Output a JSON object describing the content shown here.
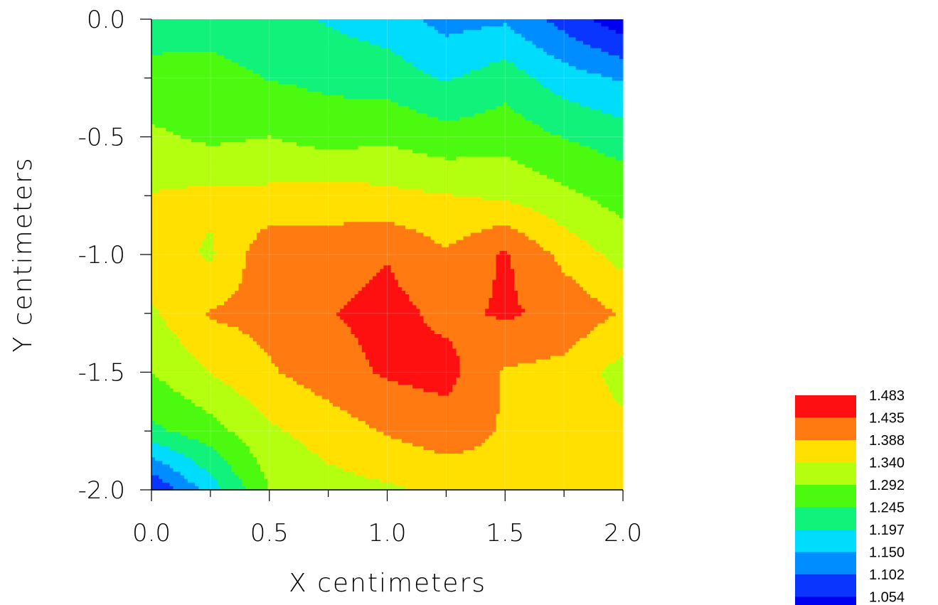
{
  "chart_data": {
    "type": "heatmap",
    "subtype": "filled-contour",
    "xlabel": "X centimeters",
    "ylabel": "Y centimeters",
    "xlim": [
      0.0,
      2.0
    ],
    "ylim": [
      -2.0,
      0.0
    ],
    "x_ticks": [
      "0.0",
      "0.5",
      "1.0",
      "1.5",
      "2.0"
    ],
    "y_ticks": [
      "0.0",
      "-0.5",
      "-1.0",
      "-1.5",
      "-2.0"
    ],
    "grid": true,
    "x": [
      0.0,
      0.25,
      0.5,
      0.75,
      1.0,
      1.25,
      1.5,
      1.75,
      2.0
    ],
    "y": [
      0.0,
      -0.25,
      -0.5,
      -0.75,
      -1.0,
      -1.25,
      -1.5,
      -1.75,
      -2.0
    ],
    "z": [
      [
        1.28,
        1.27,
        1.26,
        1.24,
        1.22,
        1.18,
        1.19,
        1.13,
        1.07
      ],
      [
        1.3,
        1.31,
        1.29,
        1.28,
        1.27,
        1.24,
        1.27,
        1.22,
        1.19
      ],
      [
        1.35,
        1.33,
        1.34,
        1.32,
        1.33,
        1.31,
        1.32,
        1.29,
        1.27
      ],
      [
        1.39,
        1.4,
        1.4,
        1.41,
        1.4,
        1.39,
        1.38,
        1.35,
        1.32
      ],
      [
        1.42,
        1.38,
        1.47,
        1.46,
        1.48,
        1.44,
        1.49,
        1.42,
        1.37
      ],
      [
        1.38,
        1.44,
        1.45,
        1.48,
        1.5,
        1.47,
        1.49,
        1.47,
        1.43
      ],
      [
        1.34,
        1.39,
        1.43,
        1.46,
        1.49,
        1.5,
        1.43,
        1.42,
        1.37
      ],
      [
        1.28,
        1.32,
        1.38,
        1.41,
        1.44,
        1.46,
        1.43,
        1.41,
        1.4
      ],
      [
        1.1,
        1.22,
        1.34,
        1.37,
        1.38,
        1.4,
        1.42,
        1.42,
        1.4
      ]
    ],
    "legend": {
      "placement": "bottom-right",
      "levels": [
        "1.483",
        "1.435",
        "1.388",
        "1.340",
        "1.292",
        "1.245",
        "1.197",
        "1.150",
        "1.102",
        "1.054"
      ],
      "colors": [
        "#ff1010",
        "#ff7a10",
        "#ffe000",
        "#b4ff10",
        "#4cfa10",
        "#10f27a",
        "#00dcfc",
        "#008dff",
        "#0a35ff",
        "#0000f0"
      ]
    }
  }
}
